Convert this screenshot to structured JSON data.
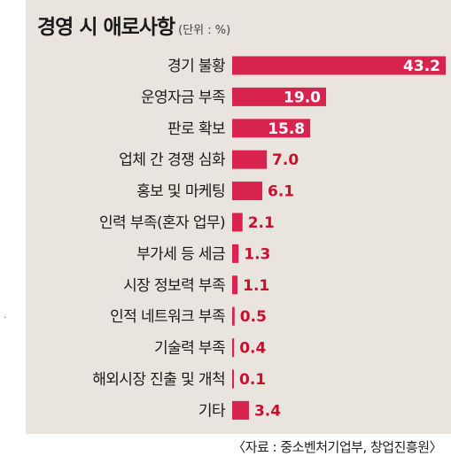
{
  "header": {
    "title": "경영 시 애로사항",
    "unit": "(단위 : %)"
  },
  "footer": {
    "source": "〈자료 : 중소벤처기업부, 창업진흥원〉"
  },
  "colors": {
    "bar": "#d6244e",
    "background": "#eae4df",
    "value_inside": "#ffffff",
    "value_outside": "#c8102e"
  },
  "chart_data": {
    "type": "bar",
    "orientation": "horizontal",
    "title": "경영 시 애로사항",
    "unit": "(단위 : %)",
    "categories": [
      "경기 불황",
      "운영자금 부족",
      "판로 확보",
      "업체 간 경쟁 심화",
      "홍보 및 마케팅",
      "인력 부족(혼자 업무)",
      "부가세 등 세금",
      "시장 정보력 부족",
      "인적 네트워크 부족",
      "기술력 부족",
      "해외시장 진출 및 개척",
      "기타"
    ],
    "values": [
      43.2,
      19.0,
      15.8,
      7.0,
      6.1,
      2.1,
      1.3,
      1.1,
      0.5,
      0.4,
      0.1,
      3.4
    ],
    "value_labels": [
      "43.2",
      "19.0",
      "15.8",
      "7.0",
      "6.1",
      "2.1",
      "1.3",
      "1.1",
      "0.5",
      "0.4",
      "0.1",
      "3.4"
    ],
    "xlim": [
      0,
      43.2
    ],
    "grid": false,
    "legend": "none"
  }
}
